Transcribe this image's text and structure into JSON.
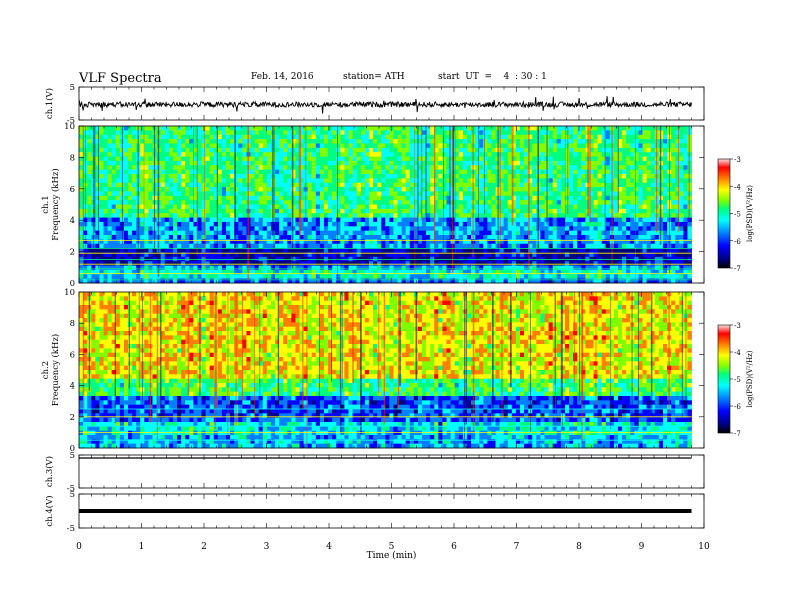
{
  "header": {
    "title": "VLF  Spectra",
    "date": "Feb. 14, 2016",
    "station": "station= ATH",
    "start": "start  UT  =    4  : 30 : 1"
  },
  "colors": {
    "colormap": [
      "#000080",
      "#0000ff",
      "#0080ff",
      "#00ffff",
      "#00ff80",
      "#80ff00",
      "#ffff00",
      "#ff8000",
      "#ff0000",
      "#ffc0c0"
    ]
  },
  "chart_data": [
    {
      "type": "line",
      "panel": "ch1-waveform",
      "ylabel": "ch.1(V)",
      "ylim": [
        -5,
        5
      ],
      "yticks": [
        "5",
        "-5"
      ],
      "x_range": [
        0,
        9.8
      ],
      "baseline": -0.3
    },
    {
      "type": "heatmap",
      "panel": "ch1-spectrogram",
      "ylabel_top": "ch.1",
      "ylabel": "Frequency (kHz)",
      "ylim": [
        0,
        10
      ],
      "yticks": [
        "0",
        "2",
        "4",
        "6",
        "8",
        "10"
      ],
      "colorbar": {
        "label": "log(PSD)(V²/Hz)",
        "range": [
          -7,
          -3
        ],
        "ticks": [
          "-3",
          "-4",
          "-5",
          "-6",
          "-7"
        ]
      }
    },
    {
      "type": "heatmap",
      "panel": "ch2-spectrogram",
      "ylabel_top": "ch.2",
      "ylabel": "Frequency (kHz)",
      "ylim": [
        0,
        10
      ],
      "yticks": [
        "0",
        "2",
        "4",
        "6",
        "8",
        "10"
      ],
      "colorbar": {
        "label": "log(PSD)(V²/Hz)",
        "range": [
          -7,
          -3
        ],
        "ticks": [
          "-3",
          "-4",
          "-5",
          "-6",
          "-7"
        ]
      }
    },
    {
      "type": "line",
      "panel": "ch3-waveform",
      "ylabel": "ch.3(V)",
      "ylim": [
        -5,
        5
      ],
      "yticks": [
        "5",
        "-5"
      ],
      "baseline": 5
    },
    {
      "type": "line",
      "panel": "ch4-waveform",
      "ylabel": "ch.4(V)",
      "ylim": [
        -5,
        5
      ],
      "yticks": [
        "5",
        "-5"
      ],
      "baseline": 0
    }
  ],
  "xaxis": {
    "label": "Time  (min)",
    "range": [
      0,
      10
    ],
    "ticks": [
      "0",
      "1",
      "2",
      "3",
      "4",
      "5",
      "6",
      "7",
      "8",
      "9",
      "10"
    ]
  }
}
